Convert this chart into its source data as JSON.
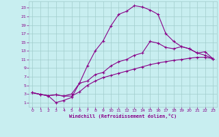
{
  "xlabel": "Windchill (Refroidissement éolien,°C)",
  "background_color": "#c8eef0",
  "grid_color": "#a0cccc",
  "line_color": "#880088",
  "xlim": [
    -0.5,
    23.5
  ],
  "ylim": [
    0,
    24.5
  ],
  "xticks": [
    0,
    1,
    2,
    3,
    4,
    5,
    6,
    7,
    8,
    9,
    10,
    11,
    12,
    13,
    14,
    15,
    16,
    17,
    18,
    19,
    20,
    21,
    22,
    23
  ],
  "yticks": [
    1,
    3,
    5,
    7,
    9,
    11,
    13,
    15,
    17,
    19,
    21,
    23
  ],
  "curve1_x": [
    0,
    1,
    2,
    3,
    4,
    5,
    6,
    7,
    8,
    9,
    10,
    11,
    12,
    13,
    14,
    15,
    16,
    17,
    18,
    19,
    20,
    21,
    22,
    23
  ],
  "curve1_y": [
    3.3,
    2.9,
    2.6,
    1.0,
    1.5,
    2.2,
    5.5,
    9.5,
    13.0,
    15.3,
    18.8,
    21.5,
    22.2,
    23.5,
    23.2,
    22.5,
    21.5,
    17.0,
    15.2,
    14.0,
    13.5,
    12.5,
    12.0,
    11.2
  ],
  "curve2_x": [
    0,
    1,
    2,
    3,
    4,
    5,
    6,
    7,
    8,
    9,
    10,
    11,
    12,
    13,
    14,
    15,
    16,
    17,
    18,
    19,
    20,
    21,
    22,
    23
  ],
  "curve2_y": [
    3.3,
    2.9,
    2.6,
    2.8,
    2.5,
    2.5,
    3.5,
    5.0,
    6.0,
    6.8,
    7.3,
    7.8,
    8.3,
    8.8,
    9.3,
    9.8,
    10.2,
    10.5,
    10.8,
    11.0,
    11.3,
    11.5,
    11.5,
    11.2
  ],
  "curve3_x": [
    0,
    1,
    2,
    3,
    4,
    5,
    6,
    7,
    8,
    9,
    10,
    11,
    12,
    13,
    14,
    15,
    16,
    17,
    18,
    19,
    20,
    21,
    22,
    23
  ],
  "curve3_y": [
    3.3,
    2.9,
    2.6,
    2.8,
    2.5,
    3.0,
    5.5,
    6.0,
    7.5,
    8.0,
    9.5,
    10.5,
    11.0,
    12.0,
    12.5,
    15.2,
    14.8,
    13.8,
    13.5,
    14.0,
    13.5,
    12.5,
    12.8,
    11.2
  ]
}
